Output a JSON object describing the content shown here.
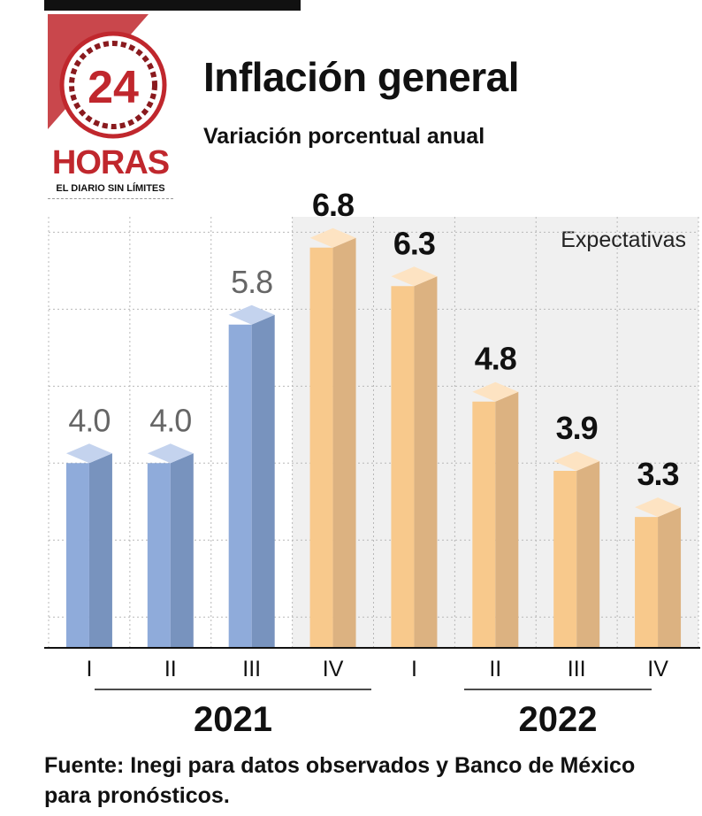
{
  "title": "Inflación general",
  "subtitle": "Variación porcentual anual",
  "source": "Fuente: Inegi para datos observados y Banco de México para pronósticos.",
  "logo": {
    "number": "24",
    "name": "HORAS",
    "tagline": "EL DIARIO SIN LÍMITES"
  },
  "colors": {
    "observed_front": "#8fabda",
    "observed_side": "#7893be",
    "observed_top": "#c4d3ee",
    "expected_front": "#f8c98c",
    "expected_side": "#dcb281",
    "expected_top": "#fde3c2",
    "shade": "#f0f0f0",
    "observed_label": "#666666",
    "expected_label": "#111111",
    "logo_red": "#c0272d"
  },
  "chart_data": {
    "type": "bar",
    "categories": [
      "I",
      "II",
      "III",
      "IV",
      "I",
      "II",
      "III",
      "IV"
    ],
    "values": [
      4.0,
      4.0,
      5.8,
      6.8,
      6.3,
      4.8,
      3.9,
      3.3
    ],
    "value_labels": [
      "4.0",
      "4.0",
      "5.8",
      "6.8",
      "6.3",
      "4.8",
      "3.9",
      "3.3"
    ],
    "status": [
      "observed",
      "observed",
      "observed",
      "expected",
      "expected",
      "expected",
      "expected",
      "expected"
    ],
    "groups": [
      {
        "label": "2021",
        "categories": [
          0,
          1,
          2,
          3
        ]
      },
      {
        "label": "2022",
        "categories": [
          4,
          5,
          6,
          7
        ]
      }
    ],
    "shaded_region": {
      "from_index": 3,
      "to_index": 7,
      "label": "Expectativas"
    },
    "ylim": [
      1.6,
      7.2
    ],
    "gridlines": [
      2.0,
      3.0,
      4.0,
      5.0,
      6.0,
      7.0
    ],
    "grid": true,
    "xlabel": "",
    "ylabel": ""
  }
}
